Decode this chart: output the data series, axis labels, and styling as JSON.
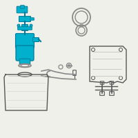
{
  "bg_color": "#f0f0ea",
  "hc": "#00b0cc",
  "hc_dark": "#007a99",
  "gc": "#888888",
  "dc": "#555555",
  "lg": "#bbbbbb"
}
